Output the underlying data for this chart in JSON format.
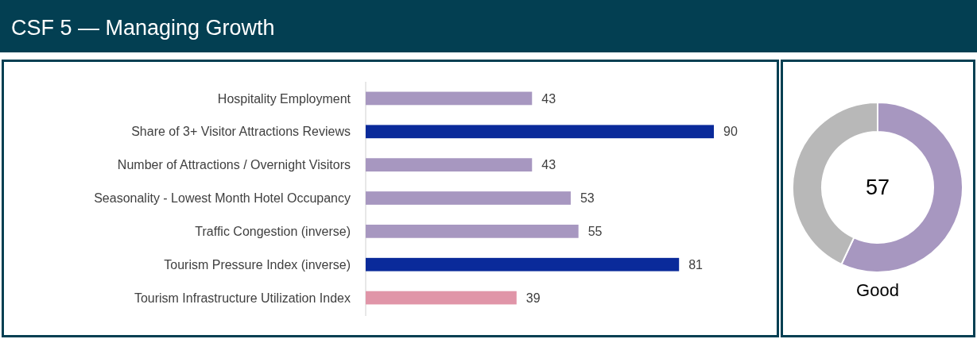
{
  "chart_data": [
    {
      "type": "bar",
      "title": "CSF 5 — Managing Growth",
      "orientation": "horizontal",
      "categories": [
        "Hospitality Employment",
        "Share of 3+ Visitor Attractions Reviews",
        "Number of Attractions / Overnight Visitors",
        "Seasonality - Lowest Month Hotel Occupancy",
        "Traffic Congestion (inverse)",
        "Tourism Pressure Index (inverse)",
        "Tourism Infrastructure Utilization Index"
      ],
      "values": [
        43,
        90,
        43,
        53,
        55,
        81,
        39
      ],
      "colors": [
        "#a797c0",
        "#0a2a9a",
        "#a797c0",
        "#a797c0",
        "#a797c0",
        "#0a2a9a",
        "#e095a8"
      ],
      "tick_labels": "y",
      "data_labels": true
    },
    {
      "type": "donut",
      "categories": [
        null,
        null
      ],
      "values": [
        57,
        43
      ],
      "colors": [
        "#a797c0",
        "#b8b8b8"
      ],
      "value_labels": [
        "57",
        null
      ],
      "annotations": [
        "Good"
      ]
    }
  ]
}
